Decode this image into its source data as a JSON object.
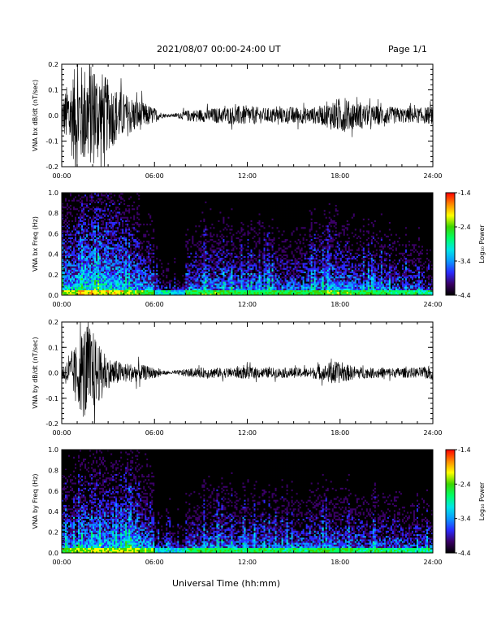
{
  "header": {
    "title": "2021/08/07  00:00-24:00 UT",
    "page": "Page 1/1"
  },
  "x_axis_title": "Universal Time (hh:mm)",
  "colorbar": {
    "label": "Log₁₀ Power",
    "ticks": [
      "-1.4",
      "-2.4",
      "-3.4",
      "-4.4"
    ],
    "range": [
      -4.4,
      -1.4
    ],
    "colors": [
      "#000000",
      "#3a0066",
      "#2a2aff",
      "#0a9aff",
      "#00e6e6",
      "#00ff66",
      "#3cd600",
      "#ffff00",
      "#ff8800",
      "#ff0000"
    ]
  },
  "chart_data": [
    {
      "type": "line",
      "panel": "bx-waveform",
      "ylabel": "VNA bx dB/dt (nT/sec)",
      "x_ticks": [
        "00:00",
        "06:00",
        "12:00",
        "18:00",
        "24:00"
      ],
      "y_ticks": [
        "0.2",
        "0.1",
        "0.0",
        "-0.1",
        "-0.2"
      ],
      "xlim": [
        0,
        24
      ],
      "ylim": [
        -0.2,
        0.2
      ],
      "envelope": {
        "x": [
          0,
          0.5,
          1,
          1.5,
          2,
          2.5,
          3,
          3.5,
          4,
          5,
          6,
          6.5,
          7,
          7.5,
          8,
          9,
          10,
          11,
          12,
          13,
          14,
          15,
          16,
          17,
          17.5,
          18,
          19,
          20,
          21,
          22,
          23,
          24
        ],
        "amplitude": [
          0.06,
          0.15,
          0.2,
          0.2,
          0.2,
          0.18,
          0.14,
          0.11,
          0.09,
          0.06,
          0.03,
          0.01,
          0.005,
          0.01,
          0.02,
          0.025,
          0.03,
          0.035,
          0.04,
          0.03,
          0.03,
          0.035,
          0.03,
          0.04,
          0.06,
          0.07,
          0.05,
          0.04,
          0.035,
          0.03,
          0.03,
          0.035
        ]
      }
    },
    {
      "type": "heatmap",
      "panel": "bx-spectrogram",
      "ylabel": "VNA bx Freq (Hz)",
      "x_ticks": [
        "00:00",
        "06:00",
        "12:00",
        "18:00",
        "24:00"
      ],
      "y_ticks": [
        "1.0",
        "0.8",
        "0.6",
        "0.4",
        "0.2",
        "0.0"
      ],
      "xlim": [
        0,
        24
      ],
      "ylim": [
        0,
        1.0
      ],
      "low_freq_power": [
        -2.2,
        -2.0,
        -2.0,
        -2.1,
        -2.3,
        -2.5,
        -3.0,
        -3.2,
        -2.6,
        -2.5,
        -2.5,
        -2.6,
        -2.6,
        -2.6,
        -2.6,
        -2.6,
        -2.5,
        -2.4,
        -2.5,
        -2.6,
        -2.6,
        -2.7,
        -2.7,
        -2.8
      ]
    },
    {
      "type": "line",
      "panel": "by-waveform",
      "ylabel": "VNA by dB/dt (nT/sec)",
      "x_ticks": [
        "00:00",
        "06:00",
        "12:00",
        "18:00",
        "24:00"
      ],
      "y_ticks": [
        "0.2",
        "0.1",
        "0.0",
        "-0.1",
        "-0.2"
      ],
      "xlim": [
        0,
        24
      ],
      "ylim": [
        -0.2,
        0.2
      ],
      "envelope": {
        "x": [
          0,
          0.5,
          1,
          1.5,
          2,
          2.5,
          3,
          3.5,
          4,
          5,
          6,
          6.5,
          7,
          7.5,
          8,
          9,
          10,
          11,
          12,
          13,
          14,
          15,
          16,
          17,
          17.5,
          18,
          19,
          20,
          21,
          22,
          23,
          24
        ],
        "amplitude": [
          0.03,
          0.06,
          0.12,
          0.2,
          0.17,
          0.1,
          0.06,
          0.05,
          0.04,
          0.035,
          0.02,
          0.01,
          0.005,
          0.01,
          0.015,
          0.02,
          0.02,
          0.02,
          0.025,
          0.02,
          0.02,
          0.02,
          0.02,
          0.03,
          0.05,
          0.04,
          0.025,
          0.02,
          0.02,
          0.02,
          0.02,
          0.03
        ]
      }
    },
    {
      "type": "heatmap",
      "panel": "by-spectrogram",
      "ylabel": "VNA by Freq (Hz)",
      "x_ticks": [
        "00:00",
        "06:00",
        "12:00",
        "18:00",
        "24:00"
      ],
      "y_ticks": [
        "1.0",
        "0.8",
        "0.6",
        "0.4",
        "0.2",
        "0.0"
      ],
      "xlim": [
        0,
        24
      ],
      "ylim": [
        0,
        1.0
      ],
      "low_freq_power": [
        -2.4,
        -2.3,
        -2.2,
        -2.3,
        -2.2,
        -2.4,
        -3.0,
        -3.1,
        -2.7,
        -2.6,
        -2.6,
        -2.7,
        -2.6,
        -2.7,
        -2.7,
        -2.7,
        -2.6,
        -2.6,
        -2.6,
        -2.7,
        -2.7,
        -2.7,
        -2.8,
        -2.8
      ]
    }
  ]
}
